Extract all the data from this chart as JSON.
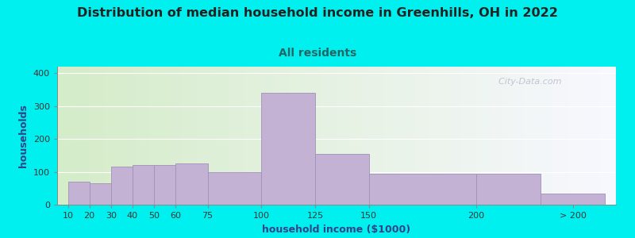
{
  "title": "Distribution of median household income in Greenhills, OH in 2022",
  "subtitle": "All residents",
  "xlabel": "household income ($1000)",
  "ylabel": "households",
  "bar_color": "#C4B2D4",
  "bar_edge_color": "#A090B8",
  "background_outer": "#00EFEF",
  "background_inner_left": "#D4ECC8",
  "background_inner_right": "#F8F8FF",
  "bar_left_edges": [
    10,
    20,
    30,
    40,
    50,
    60,
    75,
    100,
    125,
    150,
    200,
    230
  ],
  "bar_widths": [
    10,
    10,
    10,
    10,
    10,
    15,
    25,
    25,
    25,
    50,
    30,
    30
  ],
  "bar_heights": [
    70,
    65,
    115,
    120,
    120,
    125,
    100,
    340,
    155,
    95,
    95,
    35
  ],
  "xtick_positions": [
    10,
    20,
    30,
    40,
    50,
    60,
    75,
    100,
    125,
    150,
    200,
    245
  ],
  "xtick_labels": [
    "10",
    "20",
    "30",
    "40",
    "50",
    "60",
    "75",
    "100",
    "125",
    "150",
    "200",
    "> 200"
  ],
  "ylim": [
    0,
    420
  ],
  "xlim": [
    5,
    265
  ],
  "ytick_positions": [
    0,
    100,
    200,
    300,
    400
  ],
  "ytick_labels": [
    "0",
    "100",
    "200",
    "300",
    "400"
  ],
  "watermark": "  City-Data.com",
  "title_fontsize": 11.5,
  "subtitle_fontsize": 10,
  "axis_label_fontsize": 9,
  "tick_fontsize": 8,
  "title_color": "#222222",
  "subtitle_color": "#226666",
  "axis_label_color": "#334488"
}
